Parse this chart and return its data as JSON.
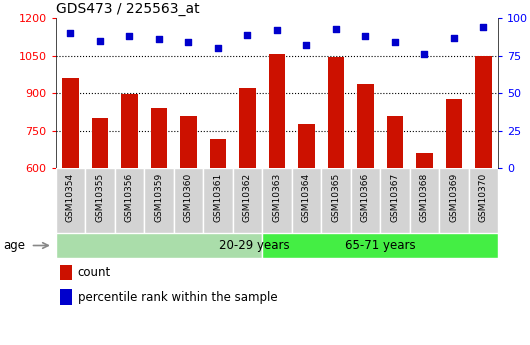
{
  "title": "GDS473 / 225563_at",
  "samples": [
    "GSM10354",
    "GSM10355",
    "GSM10356",
    "GSM10359",
    "GSM10360",
    "GSM10361",
    "GSM10362",
    "GSM10363",
    "GSM10364",
    "GSM10365",
    "GSM10366",
    "GSM10367",
    "GSM10368",
    "GSM10369",
    "GSM10370"
  ],
  "counts": [
    960,
    800,
    895,
    840,
    810,
    715,
    920,
    1055,
    775,
    1045,
    935,
    810,
    660,
    875,
    1048
  ],
  "percentile_ranks": [
    90,
    85,
    88,
    86,
    84,
    80,
    89,
    92,
    82,
    93,
    88,
    84,
    76,
    87,
    94
  ],
  "group_labels": [
    "20-29 years",
    "65-71 years"
  ],
  "group_split": 7,
  "group_color_left": "#AADDAA",
  "group_color_right": "#44EE44",
  "bar_color": "#CC1100",
  "dot_color": "#0000CC",
  "ylim_left": [
    600,
    1200
  ],
  "ylim_right": [
    0,
    100
  ],
  "yticks_left": [
    600,
    750,
    900,
    1050,
    1200
  ],
  "yticks_right": [
    0,
    25,
    50,
    75,
    100
  ],
  "grid_values": [
    750,
    900,
    1050
  ],
  "legend_items": [
    "count",
    "percentile rank within the sample"
  ],
  "age_label": "age"
}
